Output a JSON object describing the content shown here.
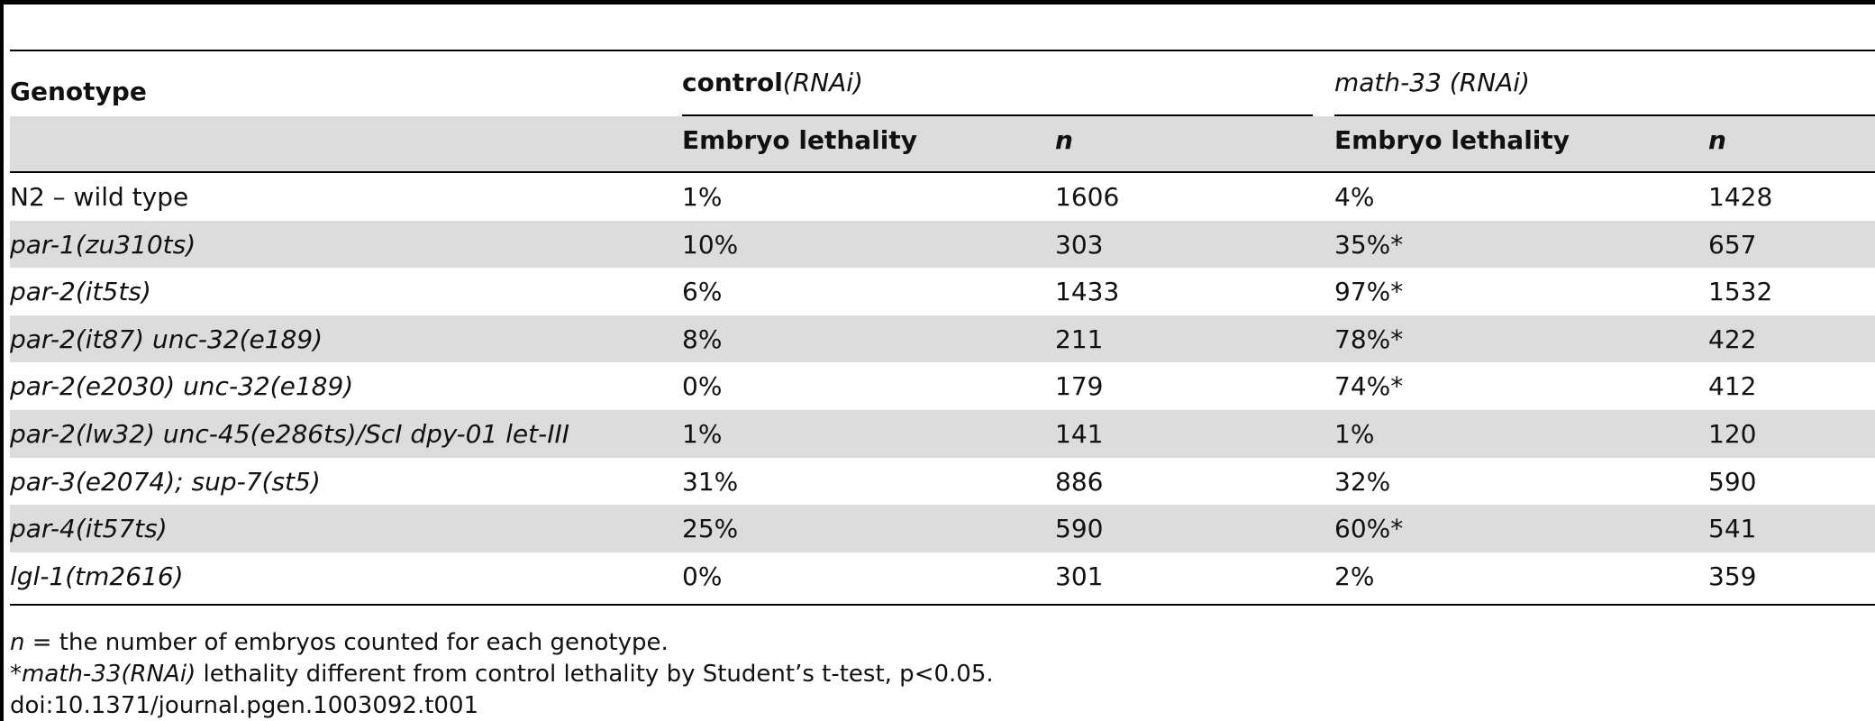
{
  "table": {
    "header": {
      "genotype": "Genotype",
      "group_control": {
        "main": "control",
        "italic": "(RNAi)"
      },
      "group_math": {
        "italic": "math-33 (RNAi)"
      },
      "lethality": "Embryo lethality",
      "n": "n"
    },
    "rows": [
      {
        "genotype": "N2 – wild type",
        "italic": false,
        "c_leth": "1%",
        "c_n": "1606",
        "m_leth": "4%",
        "m_n": "1428"
      },
      {
        "genotype": "par-1(zu310ts)",
        "italic": true,
        "c_leth": "10%",
        "c_n": "303",
        "m_leth": "35%*",
        "m_n": "657"
      },
      {
        "genotype": "par-2(it5ts)",
        "italic": true,
        "c_leth": "6%",
        "c_n": "1433",
        "m_leth": "97%*",
        "m_n": "1532"
      },
      {
        "genotype": "par-2(it87) unc-32(e189)",
        "italic": true,
        "c_leth": "8%",
        "c_n": "211",
        "m_leth": "78%*",
        "m_n": "422"
      },
      {
        "genotype": "par-2(e2030) unc-32(e189)",
        "italic": true,
        "c_leth": "0%",
        "c_n": "179",
        "m_leth": "74%*",
        "m_n": "412"
      },
      {
        "genotype": "par-2(lw32) unc-45(e286ts)/ScI dpy-01 let-III",
        "italic": true,
        "c_leth": "1%",
        "c_n": "141",
        "m_leth": "1%",
        "m_n": "120"
      },
      {
        "genotype": "par-3(e2074); sup-7(st5)",
        "italic": true,
        "c_leth": "31%",
        "c_n": "886",
        "m_leth": "32%",
        "m_n": "590"
      },
      {
        "genotype": "par-4(it57ts)",
        "italic": true,
        "c_leth": "25%",
        "c_n": "590",
        "m_leth": "60%*",
        "m_n": "541"
      },
      {
        "genotype": "lgl-1(tm2616)",
        "italic": true,
        "c_leth": "0%",
        "c_n": "301",
        "m_leth": "2%",
        "m_n": "359"
      }
    ]
  },
  "footnotes": {
    "n_def": {
      "italic": "n",
      "rest": " = the number of embryos counted for each genotype."
    },
    "ttest": {
      "prefix": "*",
      "italic": "math-33(RNAi)",
      "rest": " lethality different from control lethality by Student’s t-test, p<0.05."
    },
    "doi": "doi:10.1371/journal.pgen.1003092.t001"
  }
}
